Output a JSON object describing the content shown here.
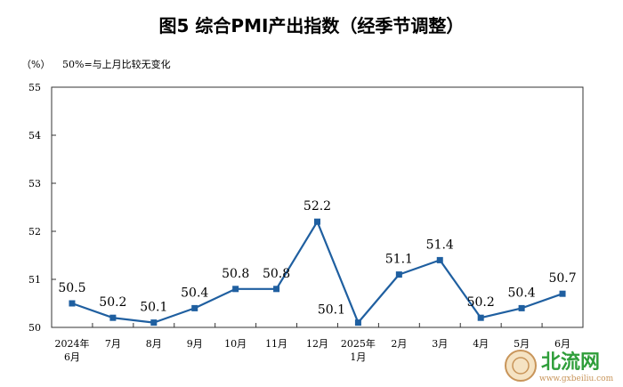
{
  "title": "图5  综合PMI产出指数（经季节调整）",
  "unit_label": "（%）",
  "baseline_note": "50%=与上月比较无变化",
  "watermark": {
    "text": "北流网",
    "url": "www.gxbeiliu.com"
  },
  "chart_data": {
    "type": "line",
    "ylim": [
      50,
      55
    ],
    "yticks": [
      "55",
      "54",
      "53",
      "52",
      "51",
      "50"
    ],
    "x_labels": [
      [
        "2024年",
        "6月"
      ],
      [
        "7月"
      ],
      [
        "8月"
      ],
      [
        "9月"
      ],
      [
        "10月"
      ],
      [
        "11月"
      ],
      [
        "12月"
      ],
      [
        "2025年",
        "1月"
      ],
      [
        "2月"
      ],
      [
        "3月"
      ],
      [
        "4月"
      ],
      [
        "5月"
      ],
      [
        "6月"
      ]
    ],
    "values": [
      50.5,
      50.2,
      50.1,
      50.4,
      50.8,
      50.8,
      52.2,
      50.1,
      51.1,
      51.4,
      50.2,
      50.4,
      50.7
    ],
    "value_labels": [
      "50.5",
      "50.2",
      "50.1",
      "50.4",
      "50.8",
      "50.8",
      "52.2",
      "50.1",
      "51.1",
      "51.4",
      "50.2",
      "50.4",
      "50.7"
    ],
    "line_color": "#1f5fa0",
    "marker_color": "#1f5fa0"
  }
}
